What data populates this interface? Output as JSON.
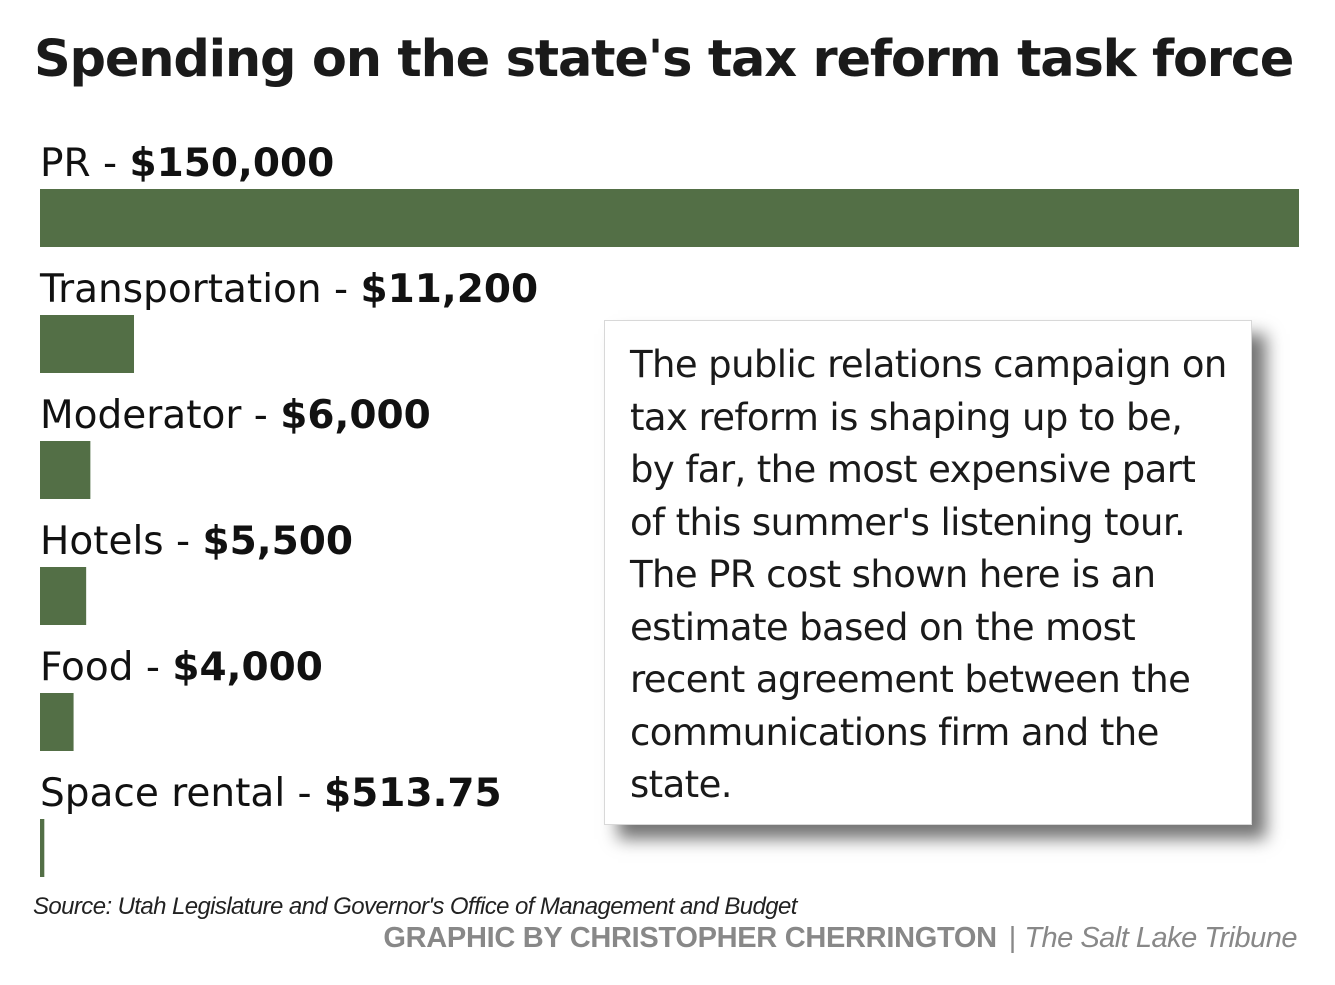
{
  "chart_data": {
    "type": "bar",
    "orientation": "horizontal",
    "title": "Spending on the state's tax reform task force",
    "categories": [
      "PR",
      "Transportation",
      "Moderator",
      "Hotels",
      "Food",
      "Space rental"
    ],
    "values": [
      150000,
      11200,
      6000,
      5500,
      4000,
      513.75
    ],
    "value_labels": [
      "$150,000",
      "$11,200",
      "$6,000",
      "$5,500",
      "$4,000",
      "$513.75"
    ],
    "label_separator": " - ",
    "grid": false,
    "bar_color": "#536f46"
  },
  "callout_text": "The public relations campaign on tax reform is shaping up to be, by far, the most expensive part of this summer's listening tour. The PR cost shown here is an estimate based on the most recent agreement between the communications firm and the state.",
  "source": "Source: Utah Legislature and Governor's Office of Management and Budget",
  "credit": {
    "byline": "GRAPHIC BY CHRISTOPHER CHERRINGTON",
    "separator": "|",
    "publication": "The Salt Lake Tribune"
  }
}
